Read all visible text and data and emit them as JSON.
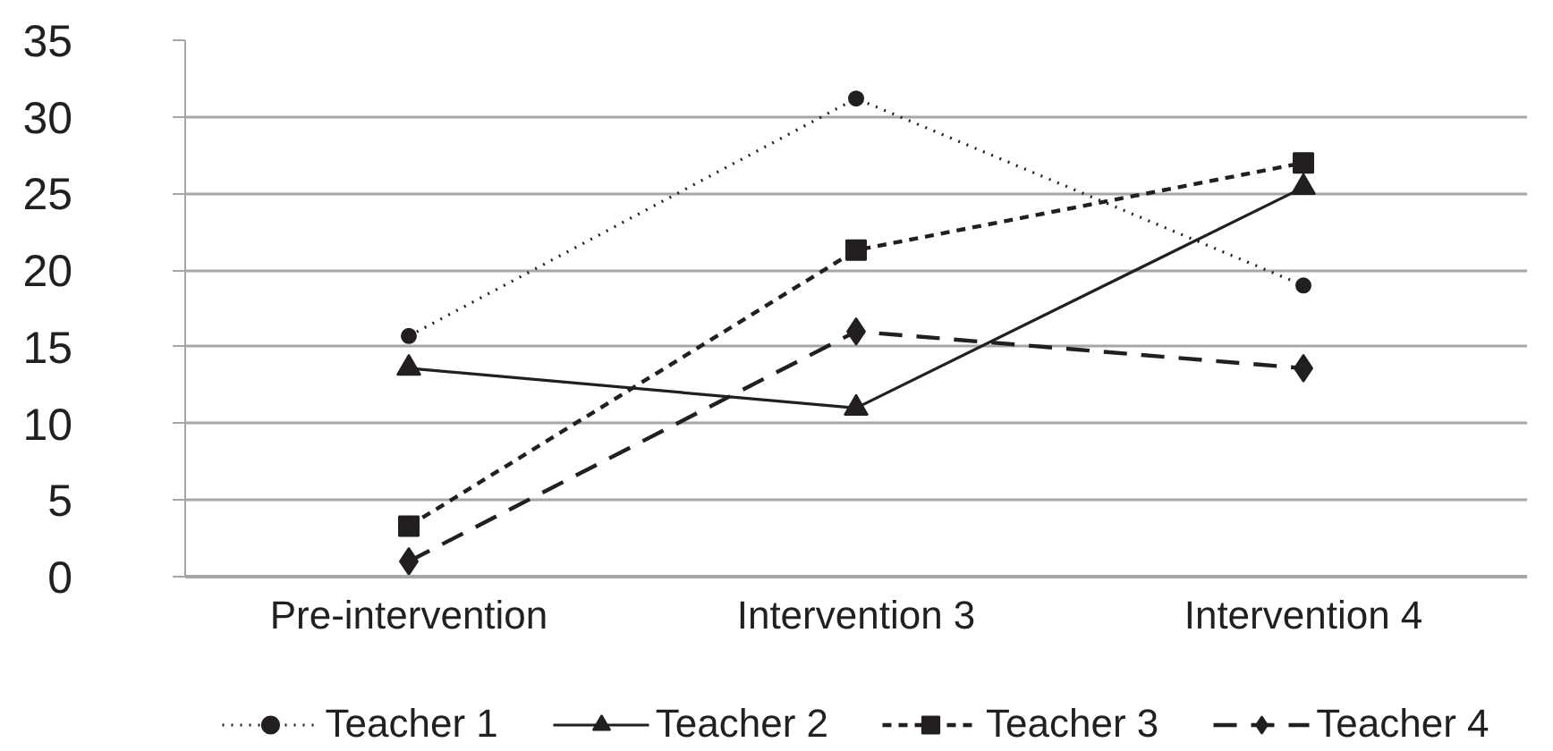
{
  "chart_data": {
    "type": "line",
    "categories": [
      "Pre-intervention",
      "Intervention 3",
      "Intervention 4"
    ],
    "ylim": [
      0,
      35
    ],
    "yticks": [
      0,
      5,
      10,
      15,
      20,
      25,
      30,
      35
    ],
    "grid": "y",
    "legend": "bottom",
    "series": [
      {
        "name": "Teacher 1",
        "color": "#231f20",
        "values": [
          15.7,
          31.2,
          19
        ],
        "marker": "circle",
        "line_style": "dotted"
      },
      {
        "name": "Teacher 2",
        "color": "#231f20",
        "values": [
          13.6,
          11,
          25.4
        ],
        "marker": "triangle",
        "line_style": "solid"
      },
      {
        "name": "Teacher 3",
        "color": "#231f20",
        "values": [
          3.3,
          21.3,
          27
        ],
        "marker": "square",
        "line_style": "dashed"
      },
      {
        "name": "Teacher 4",
        "color": "#231f20",
        "values": [
          1,
          16,
          13.6
        ],
        "marker": "diamond",
        "line_style": "dashed"
      }
    ]
  }
}
